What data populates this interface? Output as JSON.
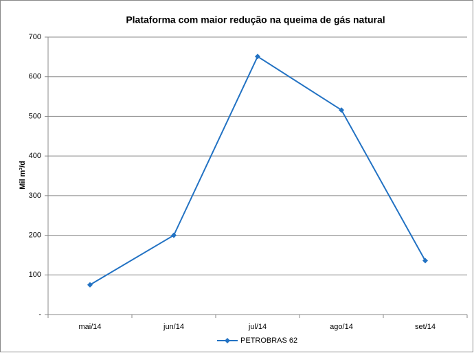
{
  "chart_data": {
    "type": "line",
    "title": "Plataforma com maior redução na queima de gás natural",
    "y_label": "Mil m³/d",
    "categories": [
      "mai/14",
      "jun/14",
      "jul/14",
      "ago/14",
      "set/14"
    ],
    "series": [
      {
        "name": "PETROBRAS 62",
        "color": "#2272c3",
        "values": [
          75,
          200,
          651,
          516,
          136
        ]
      }
    ],
    "ylim": [
      0,
      700
    ],
    "yticks": [
      {
        "value": 0,
        "label": "-"
      },
      100,
      200,
      300,
      400,
      500,
      600,
      700
    ],
    "grid": true,
    "legend": "bottom"
  }
}
